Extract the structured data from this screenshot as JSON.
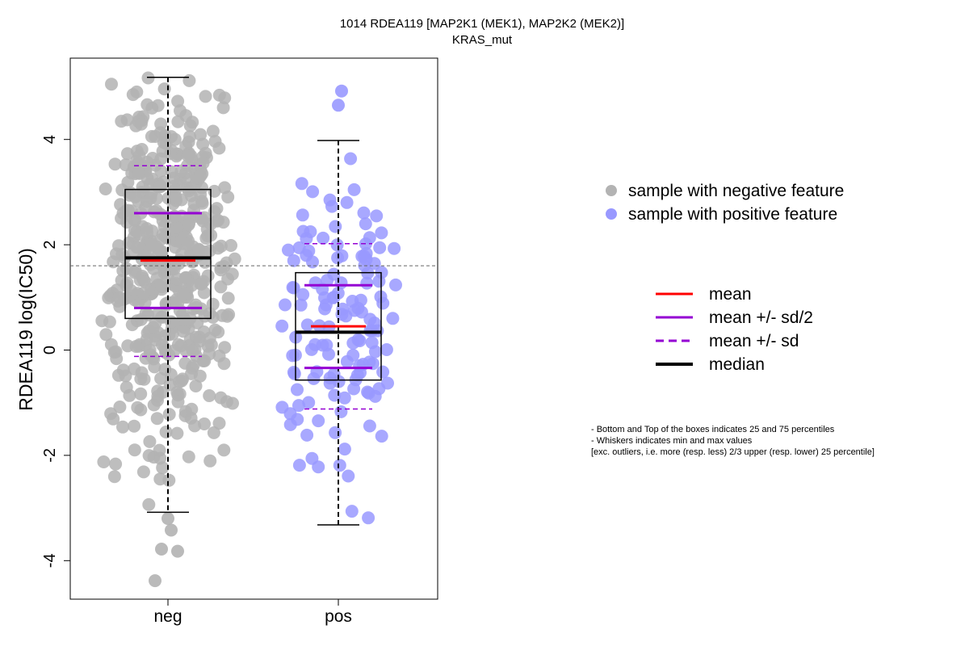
{
  "chart_data": {
    "type": "box",
    "title": "1014 RDEA119 [MAP2K1 (MEK1), MAP2K2 (MEK2)]",
    "subtitle": "KRAS_mut",
    "ylabel": "RDEA119 log(IC50)",
    "ylim": [
      -4.7,
      5.5
    ],
    "yticks": [
      -4,
      -2,
      0,
      2,
      4
    ],
    "categories": [
      "neg",
      "pos"
    ],
    "reference_line": 1.6,
    "groups": [
      {
        "category": "neg",
        "point_color": "#b3b3b3",
        "n_points": 520,
        "min": -3.08,
        "q1": 0.6,
        "median": 1.75,
        "q3": 3.05,
        "max": 5.18,
        "mean": 1.7,
        "mean_minus_half_sd": 0.8,
        "mean_plus_half_sd": 2.6,
        "mean_minus_sd": -0.12,
        "mean_plus_sd": 3.5,
        "outliers": [
          -3.2,
          -3.42,
          -3.78,
          -3.82,
          -4.38
        ]
      },
      {
        "category": "pos",
        "point_color": "#9999ff",
        "n_points": 140,
        "min": -3.32,
        "q1": -0.57,
        "median": 0.34,
        "q3": 1.47,
        "max": 3.98,
        "mean": 0.45,
        "mean_minus_half_sd": -0.34,
        "mean_plus_half_sd": 1.23,
        "mean_minus_sd": -1.12,
        "mean_plus_sd": 2.02,
        "outliers": [
          4.65,
          4.92
        ]
      }
    ],
    "legend_points": [
      {
        "label": "sample with negative feature",
        "color": "#b3b3b3"
      },
      {
        "label": "sample with positive feature",
        "color": "#9999ff"
      }
    ],
    "legend_lines": [
      {
        "label": "mean",
        "color": "#ff0000",
        "style": "solid"
      },
      {
        "label": "mean +/- sd/2",
        "color": "#9400d3",
        "style": "solid"
      },
      {
        "label": "mean +/- sd",
        "color": "#9400d3",
        "style": "dashed"
      },
      {
        "label": "median",
        "color": "#000000",
        "style": "solid-thick"
      }
    ],
    "notes": [
      "- Bottom and Top of the boxes indicates 25 and 75 percentiles",
      "- Whiskers indicates min and max values",
      "[exc. outliers, i.e. more (resp. less) 2/3 upper (resp. lower) 25 percentile]"
    ]
  }
}
